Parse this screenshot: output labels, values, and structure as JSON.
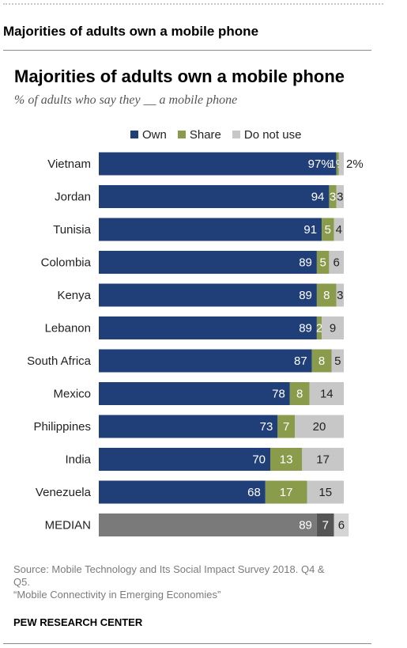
{
  "page": {
    "heading": "Majorities of adults own a mobile phone"
  },
  "colors": {
    "own": "#203e77",
    "share": "#8a9b4b",
    "do_not_use": "#c7c7c7",
    "median_own": "#7a7a7a",
    "median_share": "#555555",
    "median_do_not_use": "#d4d4d4"
  },
  "chart_data": {
    "type": "bar",
    "orientation": "horizontal",
    "stacked": true,
    "title": "Majorities of adults own a mobile phone",
    "subtitle": "% of adults who say they __ a mobile phone",
    "legend_position": "top",
    "grid": false,
    "xlim": [
      0,
      100
    ],
    "categories": [
      "Vietnam",
      "Jordan",
      "Tunisia",
      "Colombia",
      "Kenya",
      "Lebanon",
      "South Africa",
      "Mexico",
      "Philippines",
      "India",
      "Venezuela",
      "MEDIAN"
    ],
    "series": [
      {
        "name": "Own",
        "values": [
          97,
          94,
          91,
          89,
          89,
          89,
          87,
          78,
          73,
          70,
          68,
          89
        ]
      },
      {
        "name": "Share",
        "values": [
          1,
          3,
          5,
          5,
          8,
          2,
          8,
          8,
          7,
          13,
          17,
          7
        ]
      },
      {
        "name": "Do not use",
        "values": [
          2,
          3,
          4,
          6,
          3,
          9,
          5,
          14,
          20,
          17,
          15,
          6
        ]
      }
    ],
    "data_labels": [
      [
        "97%",
        "1%",
        "2%"
      ],
      [
        "94",
        "3",
        "3"
      ],
      [
        "91",
        "5",
        "4"
      ],
      [
        "89",
        "5",
        "6"
      ],
      [
        "89",
        "8",
        "3"
      ],
      [
        "89",
        "2",
        "9"
      ],
      [
        "87",
        "8",
        "5"
      ],
      [
        "78",
        "8",
        "14"
      ],
      [
        "73",
        "7",
        "20"
      ],
      [
        "70",
        "13",
        "17"
      ],
      [
        "68",
        "17",
        "15"
      ],
      [
        "89",
        "7",
        "6"
      ]
    ]
  },
  "footer": {
    "source_lines": [
      "Source: Mobile Technology and Its Social Impact Survey 2018. Q4 &",
      "Q5.",
      "“Mobile Connectivity in Emerging Economies”"
    ],
    "organization": "PEW RESEARCH CENTER"
  }
}
